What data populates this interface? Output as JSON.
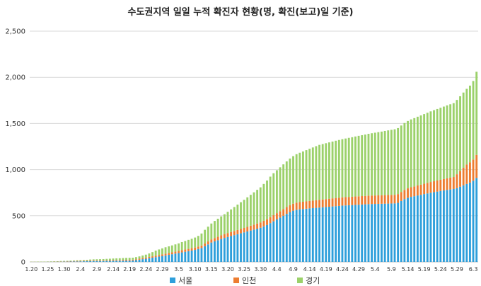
{
  "chart_data": {
    "type": "bar",
    "stacked": true,
    "title": "수도권지역 일일 누적 확진자 현황(명, 확진(보고)일 기준)",
    "xlabel": "",
    "ylabel": "",
    "ylim": [
      0,
      2500
    ],
    "yticks": [
      "0",
      "500",
      "1,000",
      "1,500",
      "2,000",
      "2,500"
    ],
    "grid": true,
    "legend_position": "bottom",
    "x_tick_labels": [
      "1.20",
      "1.25",
      "1.30",
      "2.4",
      "2.9",
      "2.14",
      "2.19",
      "2.24",
      "2.29",
      "3.5",
      "3.10",
      "3.15",
      "3.20",
      "3.25",
      "3.30",
      "4.4",
      "4.9",
      "4.14",
      "4.19",
      "4.24",
      "4.29",
      "5.4",
      "5.9",
      "5.14",
      "5.19",
      "5.24",
      "5.29",
      "6.3"
    ],
    "x_tick_every": 5,
    "categories_count": 137,
    "series": [
      {
        "name": "서울",
        "color": "#2E9FDB",
        "values": [
          0,
          0,
          0,
          0,
          0,
          1,
          1,
          1,
          2,
          2,
          3,
          3,
          4,
          5,
          5,
          6,
          7,
          8,
          9,
          10,
          10,
          10,
          10,
          11,
          11,
          12,
          13,
          13,
          13,
          14,
          14,
          15,
          19,
          24,
          30,
          34,
          40,
          46,
          52,
          58,
          64,
          70,
          77,
          83,
          90,
          96,
          103,
          110,
          116,
          123,
          130,
          140,
          150,
          170,
          190,
          210,
          223,
          235,
          248,
          260,
          270,
          280,
          290,
          300,
          310,
          320,
          330,
          340,
          350,
          360,
          370,
          385,
          400,
          420,
          440,
          460,
          480,
          500,
          520,
          540,
          555,
          565,
          570,
          573,
          576,
          580,
          583,
          586,
          589,
          592,
          595,
          598,
          601,
          604,
          607,
          610,
          612,
          614,
          616,
          618,
          620,
          622,
          624,
          626,
          627,
          628,
          629,
          630,
          631,
          632,
          633,
          634,
          640,
          660,
          680,
          695,
          705,
          712,
          720,
          727,
          735,
          742,
          750,
          756,
          762,
          768,
          774,
          780,
          785,
          790,
          800,
          815,
          830,
          845,
          860,
          880,
          910
        ]
      },
      {
        "name": "인천",
        "color": "#ED7D31",
        "values": [
          1,
          1,
          1,
          1,
          1,
          1,
          1,
          2,
          2,
          3,
          3,
          4,
          4,
          5,
          6,
          6,
          6,
          6,
          7,
          7,
          7,
          7,
          7,
          7,
          8,
          8,
          8,
          8,
          9,
          9,
          9,
          9,
          10,
          11,
          12,
          13,
          14,
          15,
          16,
          17,
          18,
          19,
          20,
          21,
          22,
          23,
          24,
          25,
          25,
          26,
          26,
          27,
          28,
          30,
          32,
          34,
          36,
          38,
          40,
          42,
          43,
          44,
          45,
          46,
          47,
          48,
          50,
          52,
          54,
          56,
          58,
          60,
          62,
          64,
          66,
          68,
          70,
          72,
          74,
          75,
          76,
          77,
          78,
          79,
          80,
          81,
          82,
          83,
          84,
          85,
          86,
          87,
          88,
          89,
          89,
          90,
          90,
          90,
          90,
          91,
          91,
          91,
          91,
          92,
          92,
          92,
          92,
          92,
          93,
          93,
          93,
          93,
          95,
          98,
          100,
          102,
          104,
          106,
          108,
          110,
          112,
          114,
          116,
          118,
          120,
          122,
          124,
          126,
          128,
          130,
          150,
          170,
          190,
          210,
          220,
          230,
          250
        ]
      },
      {
        "name": "경기",
        "color": "#9BD16A",
        "values": [
          2,
          2,
          3,
          3,
          3,
          3,
          4,
          4,
          4,
          5,
          5,
          5,
          6,
          6,
          7,
          7,
          8,
          9,
          10,
          11,
          12,
          13,
          14,
          15,
          16,
          17,
          18,
          19,
          20,
          21,
          22,
          22,
          23,
          25,
          28,
          32,
          38,
          45,
          55,
          60,
          65,
          70,
          72,
          75,
          78,
          82,
          88,
          92,
          98,
          102,
          108,
          115,
          130,
          148,
          160,
          172,
          185,
          195,
          205,
          215,
          230,
          245,
          260,
          275,
          290,
          305,
          320,
          335,
          350,
          365,
          380,
          400,
          420,
          440,
          455,
          465,
          475,
          485,
          495,
          505,
          515,
          525,
          535,
          545,
          555,
          565,
          575,
          585,
          595,
          600,
          605,
          610,
          615,
          620,
          625,
          630,
          635,
          640,
          645,
          650,
          655,
          660,
          665,
          670,
          675,
          680,
          685,
          690,
          695,
          700,
          705,
          710,
          715,
          720,
          725,
          730,
          735,
          740,
          745,
          750,
          755,
          760,
          765,
          770,
          775,
          780,
          785,
          790,
          795,
          800,
          805,
          810,
          815,
          820,
          830,
          850,
          900
        ]
      }
    ]
  }
}
